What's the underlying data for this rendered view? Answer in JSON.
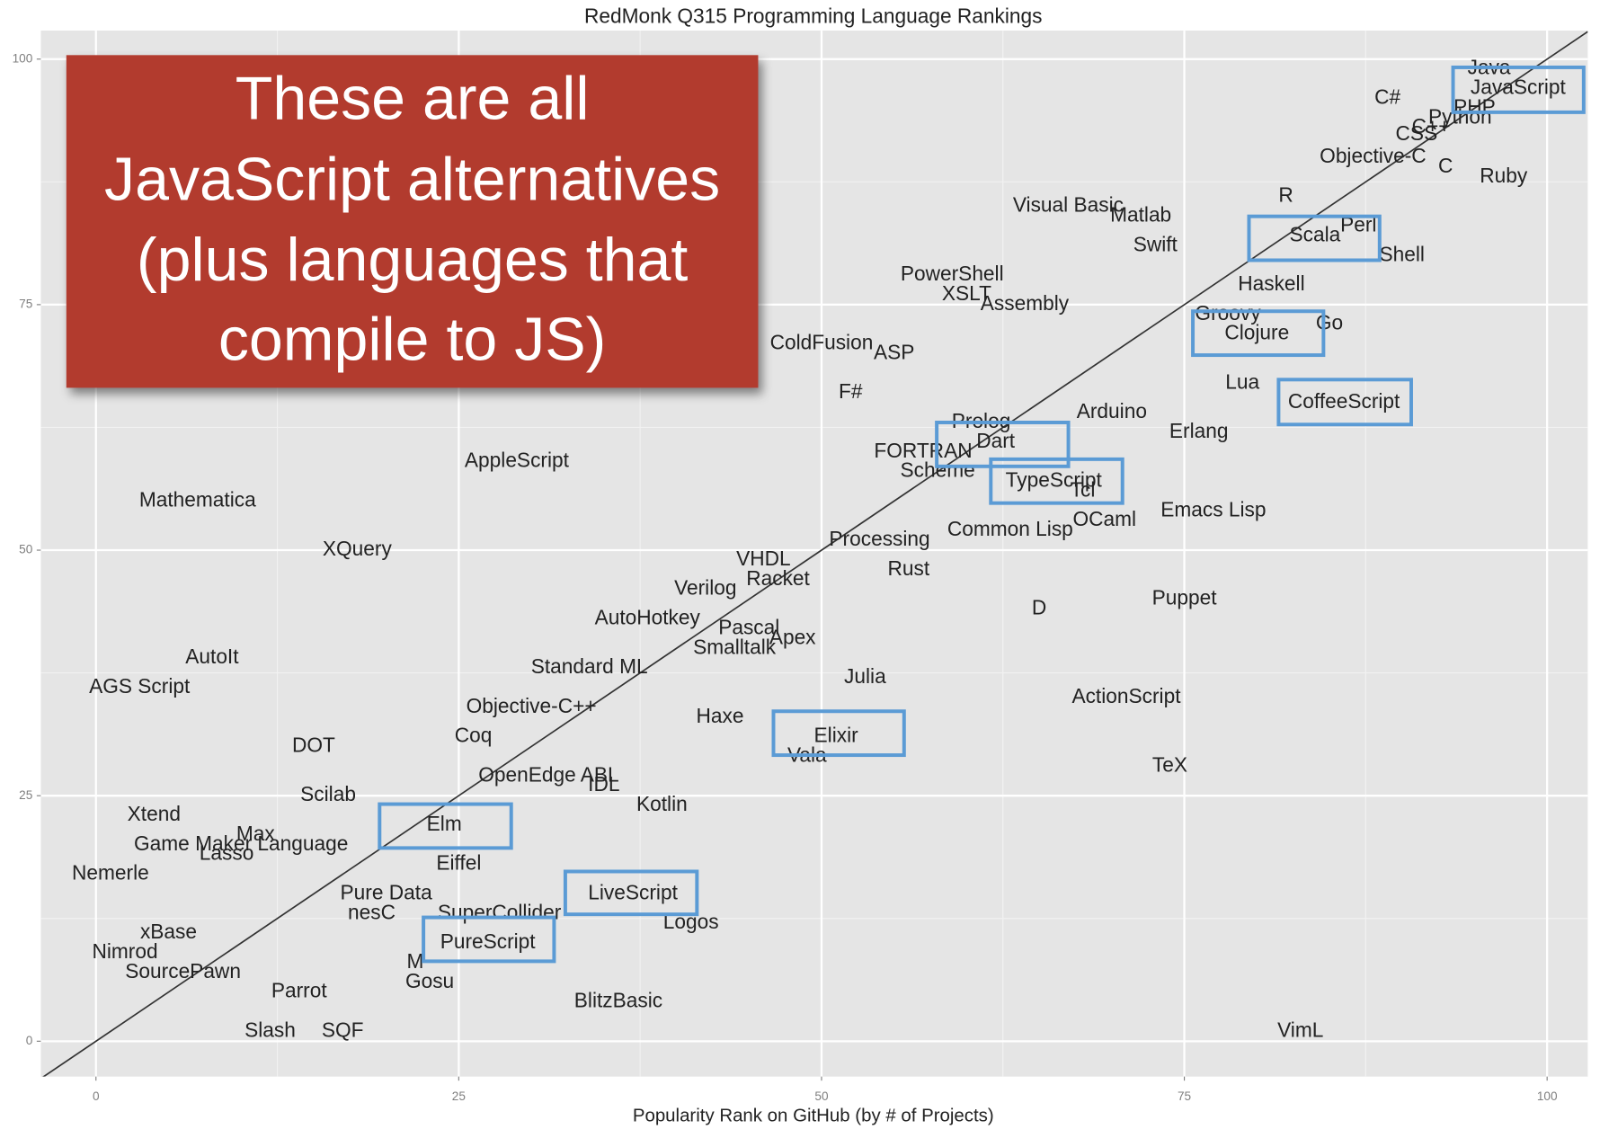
{
  "chart_data": {
    "type": "scatter",
    "title": "RedMonk Q315 Programming Language Rankings",
    "x_label": "Popularity Rank on GitHub (by # of Projects)",
    "xlim": [
      -3.8,
      102.8
    ],
    "ylim": [
      -3.6,
      102.9
    ],
    "xticks": [
      0,
      25,
      50,
      75,
      100
    ],
    "yticks": [
      0,
      25,
      50,
      75,
      100
    ],
    "grid": true,
    "points": [
      {
        "label": "Java",
        "x": 96,
        "y": 99
      },
      {
        "label": "JavaScript",
        "x": 98,
        "y": 97
      },
      {
        "label": "PHP",
        "x": 95,
        "y": 95
      },
      {
        "label": "C#",
        "x": 89,
        "y": 96
      },
      {
        "label": "Python",
        "x": 94,
        "y": 94
      },
      {
        "label": "CSS",
        "x": 91,
        "y": 92.3
      },
      {
        "label": "C++",
        "x": 92,
        "y": 93
      },
      {
        "label": "Objective-C",
        "x": 88,
        "y": 90
      },
      {
        "label": "C",
        "x": 93,
        "y": 89
      },
      {
        "label": "Ruby",
        "x": 97,
        "y": 88
      },
      {
        "label": "R",
        "x": 82,
        "y": 86
      },
      {
        "label": "Visual Basic",
        "x": 67,
        "y": 85
      },
      {
        "label": "Matlab",
        "x": 72,
        "y": 84
      },
      {
        "label": "Scala",
        "x": 84,
        "y": 82
      },
      {
        "label": "Perl",
        "x": 87,
        "y": 83
      },
      {
        "label": "Swift",
        "x": 73,
        "y": 81
      },
      {
        "label": "Shell",
        "x": 90,
        "y": 80
      },
      {
        "label": "PowerShell",
        "x": 59,
        "y": 78
      },
      {
        "label": "Haskell",
        "x": 81,
        "y": 77
      },
      {
        "label": "XSLT",
        "x": 60,
        "y": 76
      },
      {
        "label": "Assembly",
        "x": 64,
        "y": 75
      },
      {
        "label": "Groovy",
        "x": 78,
        "y": 74
      },
      {
        "label": "Go",
        "x": 85,
        "y": 73
      },
      {
        "label": "Clojure",
        "x": 80,
        "y": 72
      },
      {
        "label": "ColdFusion",
        "x": 50,
        "y": 71
      },
      {
        "label": "ASP",
        "x": 55,
        "y": 70
      },
      {
        "label": "Lua",
        "x": 79,
        "y": 67
      },
      {
        "label": "F#",
        "x": 52,
        "y": 66
      },
      {
        "label": "CoffeeScript",
        "x": 86,
        "y": 65
      },
      {
        "label": "Arduino",
        "x": 70,
        "y": 64
      },
      {
        "label": "Prolog",
        "x": 61,
        "y": 63
      },
      {
        "label": "Erlang",
        "x": 76,
        "y": 62
      },
      {
        "label": "Dart",
        "x": 62,
        "y": 61
      },
      {
        "label": "FORTRAN",
        "x": 57,
        "y": 60
      },
      {
        "label": "AppleScript",
        "x": 29,
        "y": 59
      },
      {
        "label": "Scheme",
        "x": 58,
        "y": 58
      },
      {
        "label": "TypeScript",
        "x": 66,
        "y": 57
      },
      {
        "label": "Tcl",
        "x": 68,
        "y": 56
      },
      {
        "label": "Mathematica",
        "x": 7,
        "y": 55
      },
      {
        "label": "Emacs Lisp",
        "x": 77,
        "y": 54
      },
      {
        "label": "OCaml",
        "x": 69.5,
        "y": 53
      },
      {
        "label": "Common Lisp",
        "x": 63,
        "y": 52
      },
      {
        "label": "Processing",
        "x": 54,
        "y": 51
      },
      {
        "label": "XQuery",
        "x": 18,
        "y": 50
      },
      {
        "label": "VHDL",
        "x": 46,
        "y": 49
      },
      {
        "label": "Rust",
        "x": 56,
        "y": 48
      },
      {
        "label": "Racket",
        "x": 47,
        "y": 47
      },
      {
        "label": "Verilog",
        "x": 42,
        "y": 46
      },
      {
        "label": "D",
        "x": 65,
        "y": 44
      },
      {
        "label": "Puppet",
        "x": 75,
        "y": 45
      },
      {
        "label": "AutoHotkey",
        "x": 38,
        "y": 43
      },
      {
        "label": "Pascal",
        "x": 45,
        "y": 42
      },
      {
        "label": "Apex",
        "x": 48,
        "y": 41
      },
      {
        "label": "Smalltalk",
        "x": 44,
        "y": 40
      },
      {
        "label": "AutoIt",
        "x": 8,
        "y": 39
      },
      {
        "label": "Standard ML",
        "x": 34,
        "y": 38
      },
      {
        "label": "Julia",
        "x": 53,
        "y": 37
      },
      {
        "label": "AGS Script",
        "x": 3,
        "y": 36
      },
      {
        "label": "ActionScript",
        "x": 71,
        "y": 35
      },
      {
        "label": "Objective-C++",
        "x": 30,
        "y": 34
      },
      {
        "label": "Haxe",
        "x": 43,
        "y": 33
      },
      {
        "label": "Coq",
        "x": 26,
        "y": 31
      },
      {
        "label": "Elixir",
        "x": 51,
        "y": 31
      },
      {
        "label": "DOT",
        "x": 15,
        "y": 30
      },
      {
        "label": "Vala",
        "x": 49,
        "y": 29
      },
      {
        "label": "TeX",
        "x": 74,
        "y": 28
      },
      {
        "label": "OpenEdge ABL",
        "x": 31.2,
        "y": 27
      },
      {
        "label": "IDL",
        "x": 35,
        "y": 26
      },
      {
        "label": "Scilab",
        "x": 16,
        "y": 25
      },
      {
        "label": "Kotlin",
        "x": 39,
        "y": 24
      },
      {
        "label": "Xtend",
        "x": 4,
        "y": 23
      },
      {
        "label": "Elm",
        "x": 24,
        "y": 22
      },
      {
        "label": "Max",
        "x": 11,
        "y": 21
      },
      {
        "label": "Game Maker Language",
        "x": 10,
        "y": 20
      },
      {
        "label": "Lasso",
        "x": 9,
        "y": 19
      },
      {
        "label": "Eiffel",
        "x": 25,
        "y": 18
      },
      {
        "label": "Nemerle",
        "x": 1,
        "y": 17
      },
      {
        "label": "Pure Data",
        "x": 20,
        "y": 15
      },
      {
        "label": "LiveScript",
        "x": 37,
        "y": 15
      },
      {
        "label": "nesC",
        "x": 19,
        "y": 13
      },
      {
        "label": "SuperCollider",
        "x": 27.8,
        "y": 13
      },
      {
        "label": "Logos",
        "x": 41,
        "y": 12
      },
      {
        "label": "xBase",
        "x": 5,
        "y": 11
      },
      {
        "label": "PureScript",
        "x": 27,
        "y": 10
      },
      {
        "label": "Nimrod",
        "x": 2,
        "y": 9
      },
      {
        "label": "M",
        "x": 22,
        "y": 8
      },
      {
        "label": "SourcePawn",
        "x": 6,
        "y": 7
      },
      {
        "label": "Gosu",
        "x": 23,
        "y": 6
      },
      {
        "label": "Parrot",
        "x": 14,
        "y": 5
      },
      {
        "label": "BlitzBasic",
        "x": 36,
        "y": 4
      },
      {
        "label": "VimL",
        "x": 83,
        "y": 1
      },
      {
        "label": "Slash",
        "x": 12,
        "y": 1
      },
      {
        "label": "SQF",
        "x": 17,
        "y": 1
      }
    ],
    "annotation": {
      "lines": [
        "These are all",
        "JavaScript alternatives",
        "(plus languages that",
        "compile to JS)"
      ],
      "color": "#b23a2f"
    }
  }
}
